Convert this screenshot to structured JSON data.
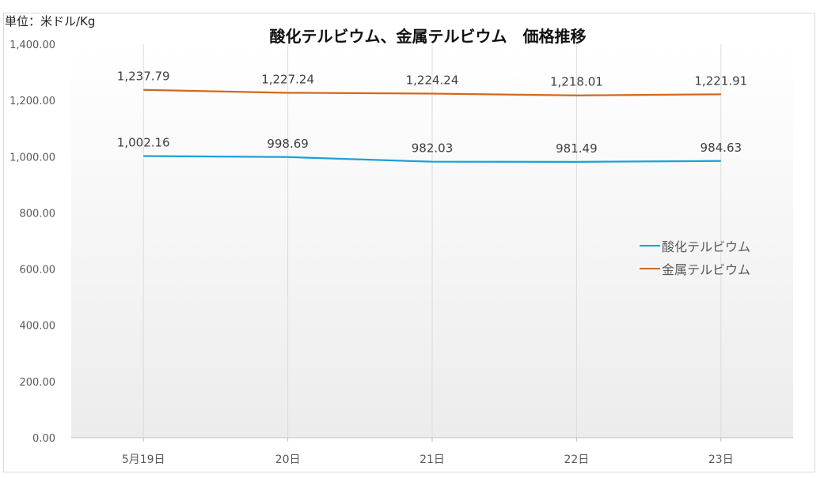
{
  "unit_label": "単位：米ドル/Kg",
  "chart_data": {
    "type": "line",
    "title": "酸化テルビウム、金属テルビウム　価格推移",
    "categories": [
      "5月19日",
      "20日",
      "21日",
      "22日",
      "23日"
    ],
    "ylim": [
      0,
      1400
    ],
    "yticks": [
      "0.00",
      "200.00",
      "400.00",
      "600.00",
      "800.00",
      "1,000.00",
      "1,200.00",
      "1,400.00"
    ],
    "grid": "vertical",
    "legend_position": "right",
    "series": [
      {
        "name": "酸化テルビウム",
        "color": "#1da1d8",
        "values": [
          1002.16,
          998.69,
          982.03,
          981.49,
          984.63
        ],
        "labels": [
          "1,002.16",
          "998.69",
          "982.03",
          "981.49",
          "984.63"
        ]
      },
      {
        "name": "金属テルビウム",
        "color": "#d2691e",
        "values": [
          1237.79,
          1227.24,
          1224.24,
          1218.01,
          1221.91
        ],
        "labels": [
          "1,237.79",
          "1,227.24",
          "1,224.24",
          "1,218.01",
          "1,221.91"
        ]
      }
    ]
  }
}
